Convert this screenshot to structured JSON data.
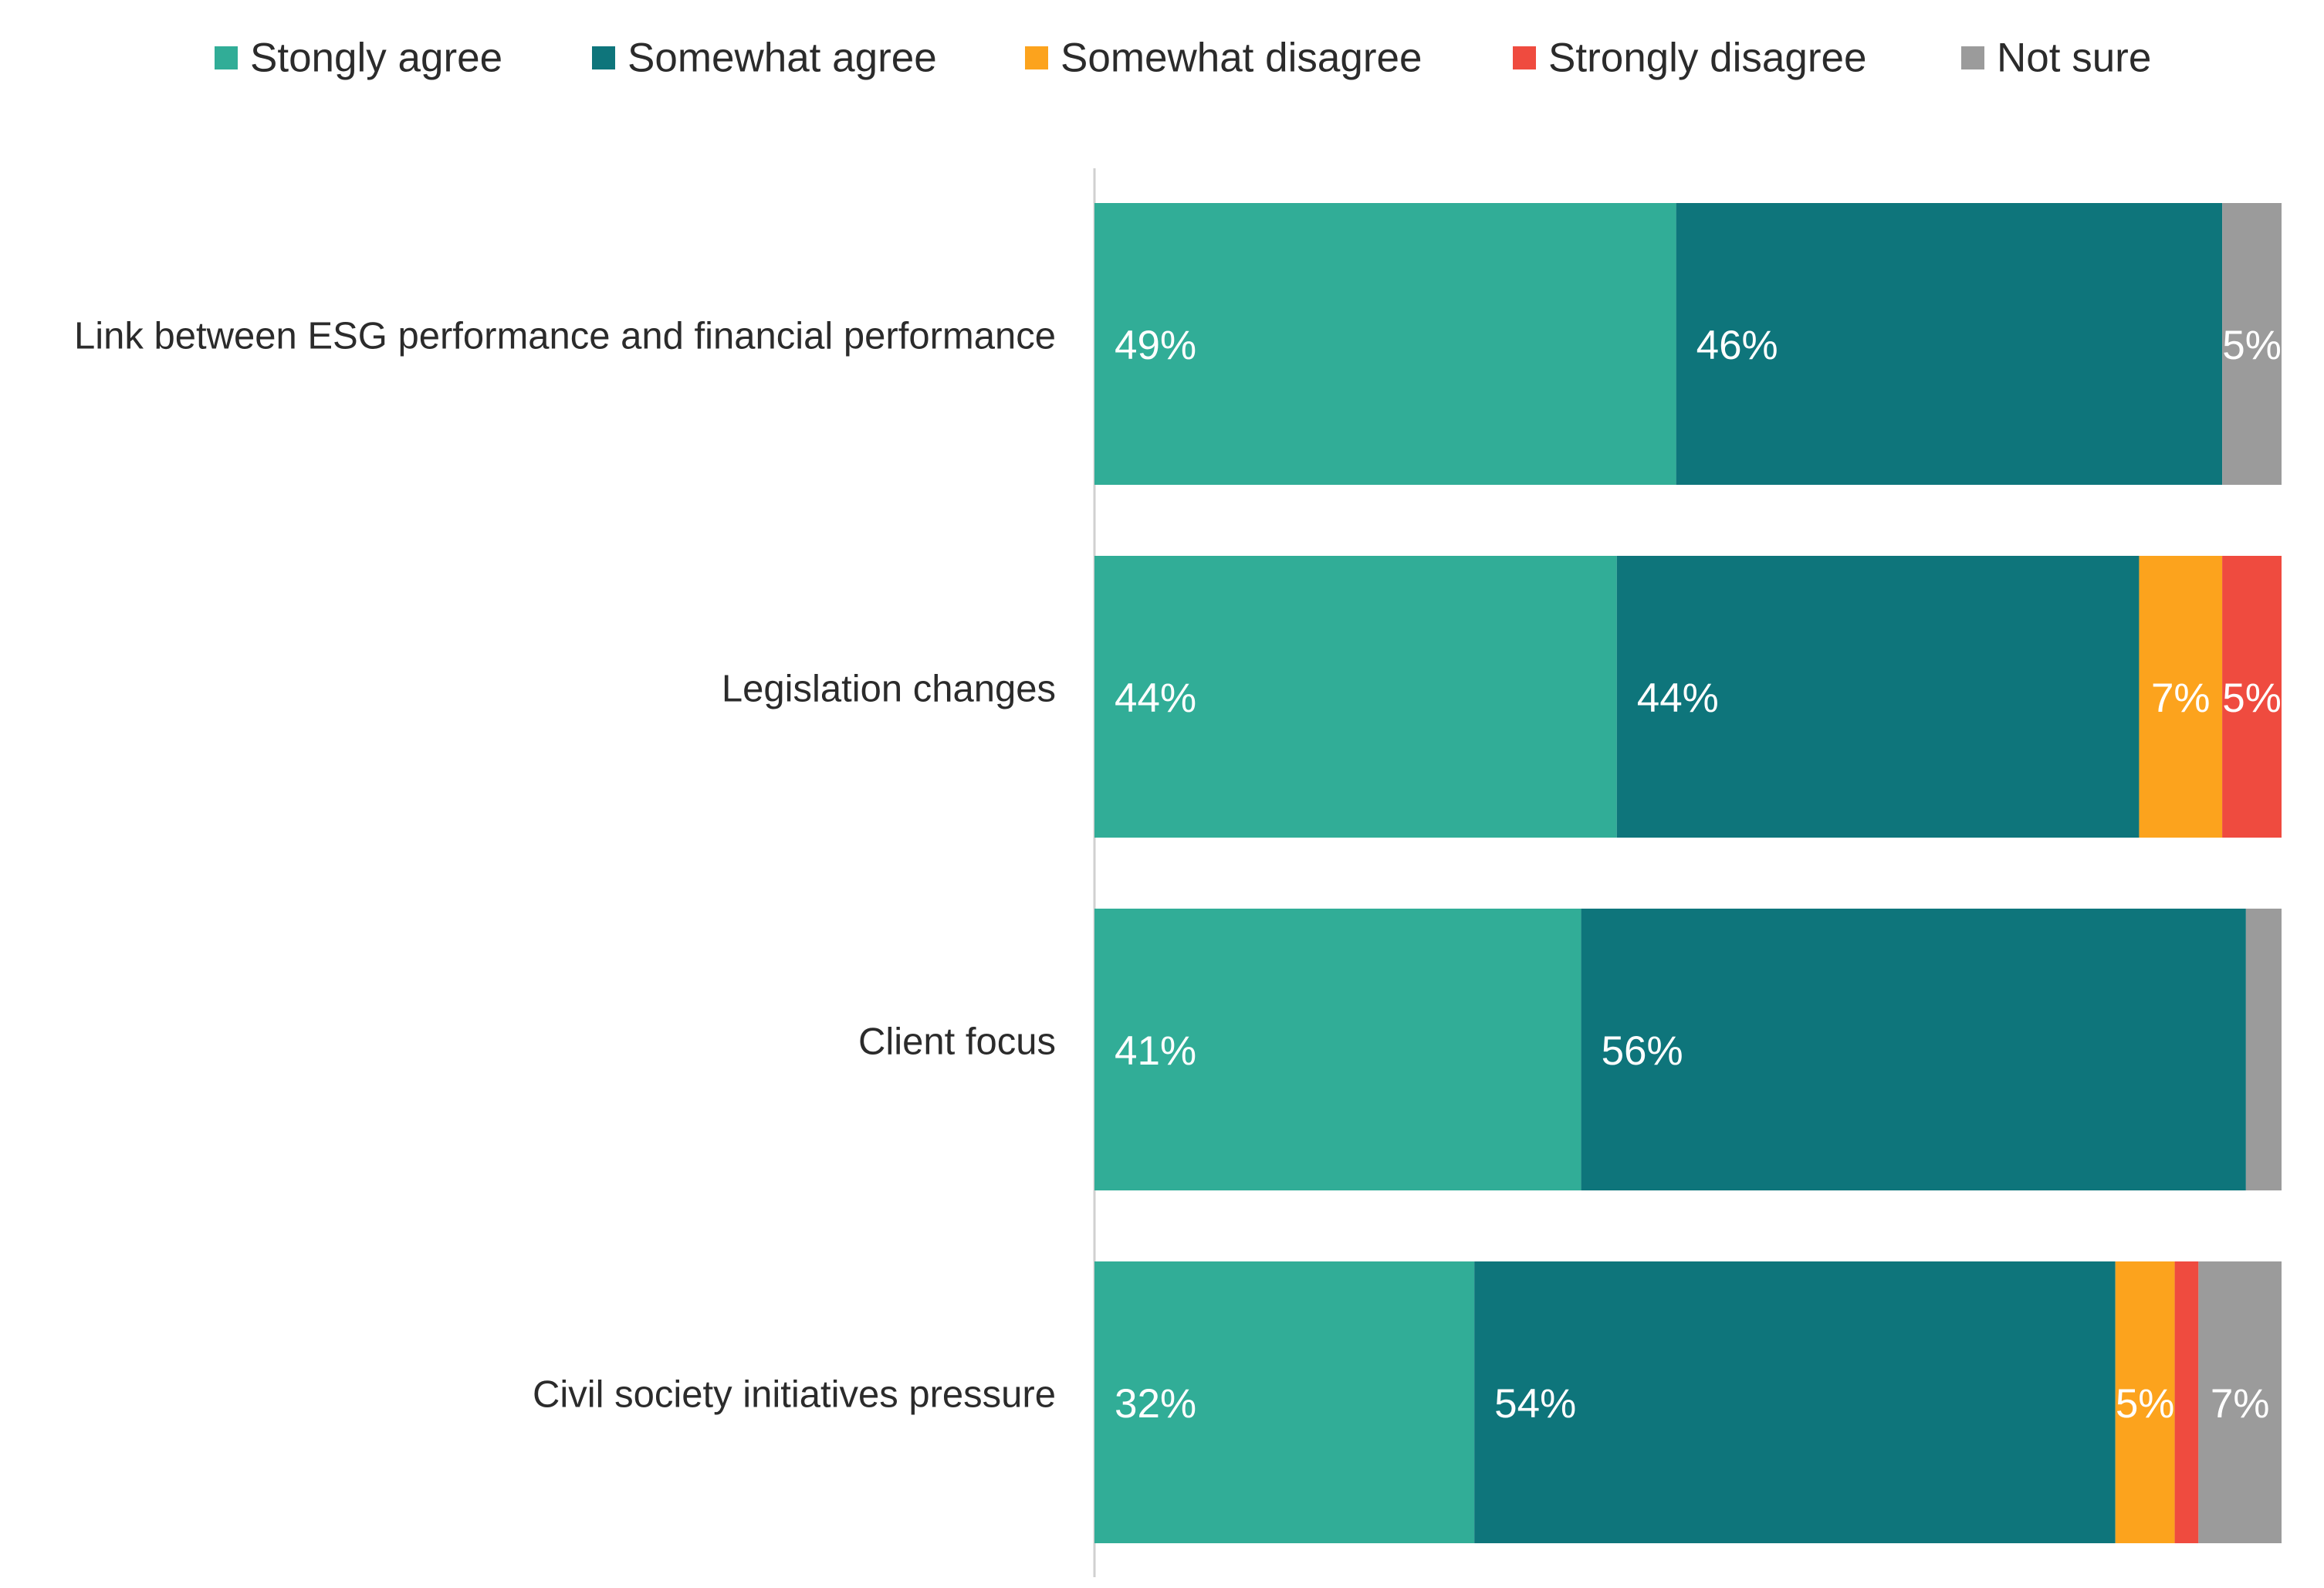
{
  "chart_data": {
    "type": "bar",
    "orientation": "horizontal",
    "stacked": true,
    "title": "",
    "xlabel": "",
    "ylabel": "",
    "xlim": [
      0,
      100
    ],
    "grid": false,
    "legend_position": "top",
    "categories": [
      "Link between ESG performance and financial performance",
      "Legislation changes",
      "Client focus",
      "Civil society initiatives pressure"
    ],
    "series": [
      {
        "name": "Stongly agree",
        "color": "#31ad97",
        "values": [
          49,
          44,
          41,
          32
        ],
        "labels": [
          "49%",
          "44%",
          "41%",
          "32%"
        ]
      },
      {
        "name": "Somewhat agree",
        "color": "#0e757b",
        "values": [
          46,
          44,
          56,
          54
        ],
        "labels": [
          "46%",
          "44%",
          "56%",
          "54%"
        ]
      },
      {
        "name": "Somewhat disagree",
        "color": "#fca31d",
        "values": [
          0,
          7,
          0,
          5
        ],
        "labels": [
          "",
          "7%",
          "",
          "5%"
        ]
      },
      {
        "name": "Strongly disagree",
        "color": "#ef4b3f",
        "values": [
          0,
          5,
          0,
          2
        ],
        "labels": [
          "",
          "5%",
          "",
          ""
        ]
      },
      {
        "name": "Not sure",
        "color": "#9b9b9b",
        "values": [
          5,
          0,
          3,
          7
        ],
        "labels": [
          "5%",
          "",
          "",
          "7%"
        ]
      }
    ]
  }
}
